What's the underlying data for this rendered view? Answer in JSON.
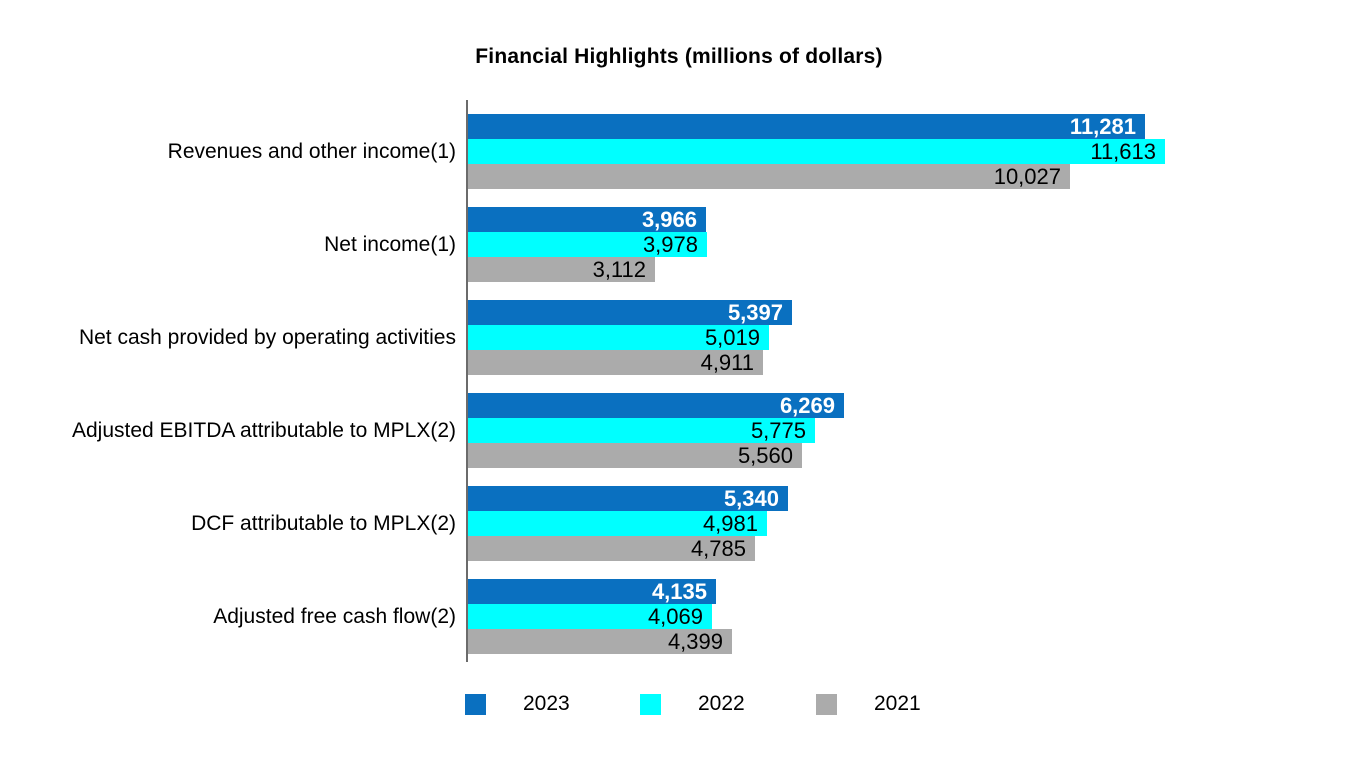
{
  "title": "Financial Highlights (millions of dollars)",
  "chart_data": {
    "type": "bar",
    "orientation": "horizontal",
    "title": "Financial Highlights (millions of dollars)",
    "unit": "millions of dollars",
    "categories": [
      "Revenues and other income(1)",
      "Net income(1)",
      "Net cash provided by operating activities",
      "Adjusted EBITDA attributable to MPLX(2)",
      "DCF attributable to MPLX(2)",
      "Adjusted free cash flow(2)"
    ],
    "series": [
      {
        "name": "2023",
        "color": "#0a70c0",
        "label_color": "#ffffff",
        "label_weight": "bold",
        "values": [
          11281,
          3966,
          5397,
          6269,
          5340,
          4135
        ]
      },
      {
        "name": "2022",
        "color": "#00ffff",
        "label_color": "#000000",
        "label_weight": "normal",
        "values": [
          11613,
          3978,
          5019,
          5775,
          4981,
          4069
        ]
      },
      {
        "name": "2021",
        "color": "#ababab",
        "label_color": "#000000",
        "label_weight": "normal",
        "values": [
          10027,
          3112,
          4911,
          5560,
          4785,
          4399
        ]
      }
    ],
    "value_label_position": "inside-end",
    "number_format": "thousands-comma",
    "axis": {
      "value_axis_visible": false,
      "grid": false,
      "category_axis_line_color": "#6b6b6b",
      "implied_value_range": [
        0,
        11666
      ]
    },
    "legend": {
      "position": "bottom",
      "entries": [
        "2023",
        "2022",
        "2021"
      ]
    }
  },
  "colors": {
    "background": "#ffffff",
    "series_2023": "#0a70c0",
    "series_2022": "#00ffff",
    "series_2021": "#ababab",
    "axis_line": "#6b6b6b",
    "value_label_on_blue": "#ffffff",
    "value_label_default": "#000000"
  }
}
